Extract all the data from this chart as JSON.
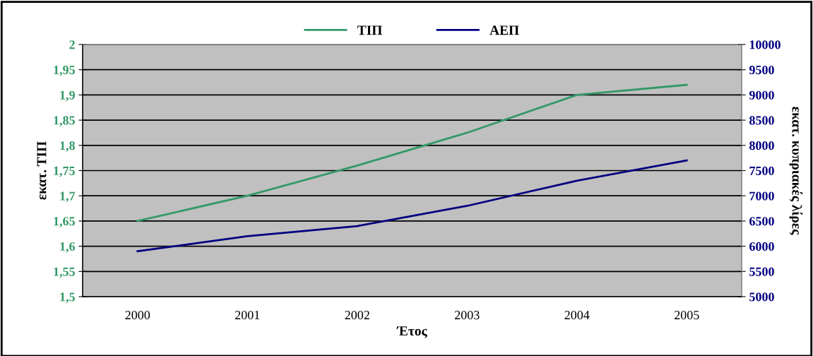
{
  "chart_data": {
    "type": "line",
    "xlabel": "Έτος",
    "ylabel": "εκατ. ΤΙΠ",
    "y2label": "εκατ. κυπριακές λίρες",
    "categories": [
      "2000",
      "2001",
      "2002",
      "2003",
      "2004",
      "2005"
    ],
    "series": [
      {
        "name": "ΤΙΠ",
        "color": "#339966",
        "values": [
          1.65,
          1.7,
          1.76,
          1.825,
          1.9,
          1.92
        ]
      },
      {
        "name": "ΑΕΠ",
        "color": "#000080",
        "axis": "y2",
        "values": [
          5900,
          6200,
          6400,
          6800,
          7300,
          7700
        ]
      }
    ],
    "ylim": [
      1.5,
      2
    ],
    "yticks": [
      {
        "value": 1.5,
        "label": "1,5"
      },
      {
        "value": 1.55,
        "label": "1,55"
      },
      {
        "value": 1.6,
        "label": "1,6"
      },
      {
        "value": 1.65,
        "label": "1,65"
      },
      {
        "value": 1.7,
        "label": "1,7"
      },
      {
        "value": 1.75,
        "label": "1,75"
      },
      {
        "value": 1.8,
        "label": "1,8"
      },
      {
        "value": 1.85,
        "label": "1,85"
      },
      {
        "value": 1.9,
        "label": "1,9"
      },
      {
        "value": 1.95,
        "label": "1,95"
      },
      {
        "value": 2,
        "label": "2"
      }
    ],
    "y2lim": [
      5000,
      10000
    ],
    "y2ticks": [
      5000,
      5500,
      6000,
      6500,
      7000,
      7500,
      8000,
      8500,
      9000,
      9500,
      10000
    ],
    "grid": "y",
    "legend": "top",
    "marker": "none",
    "line_style": "solid"
  }
}
